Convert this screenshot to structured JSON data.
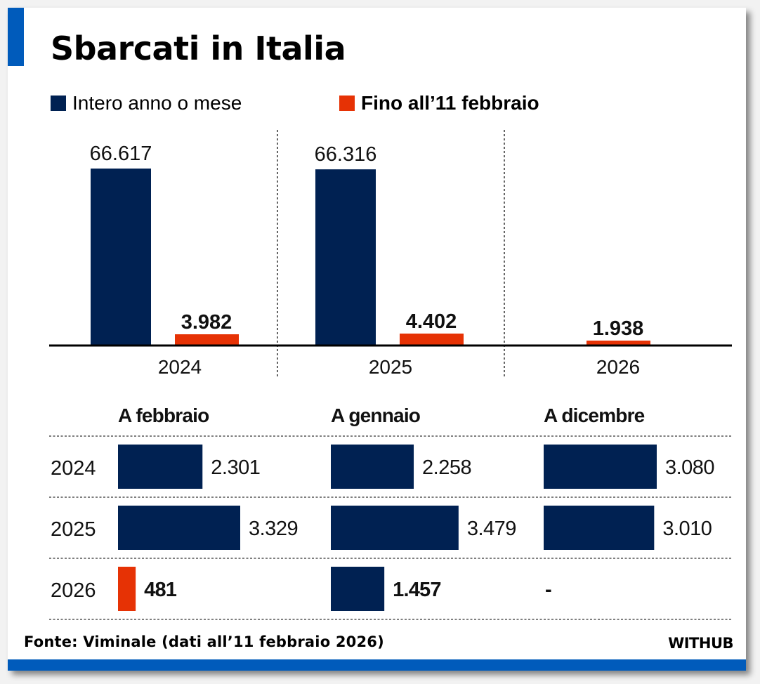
{
  "title": "Sbarcati in Italia",
  "legend": [
    {
      "label": "Intero anno o mese",
      "color": "#002152"
    },
    {
      "label": "Fino all’11 febbraio",
      "color": "#e63205"
    }
  ],
  "source": "Fonte: Viminale (dati all’11 febbraio 2026)",
  "brand": "WITHUB",
  "colors": {
    "navy": "#002152",
    "red": "#e63205",
    "accent": "#005bbb"
  },
  "chart_data": [
    {
      "type": "bar",
      "title": "Sbarcati in Italia",
      "categories": [
        "2024",
        "2025",
        "2026"
      ],
      "series": [
        {
          "name": "Intero anno o mese",
          "values": [
            66617,
            66316,
            null
          ],
          "labels": [
            "66.617",
            "66.316",
            ""
          ]
        },
        {
          "name": "Fino all’11 febbraio",
          "values": [
            3982,
            4402,
            1938
          ],
          "labels": [
            "3.982",
            "4.402",
            "1.938"
          ]
        }
      ],
      "ylim": [
        0,
        70000
      ],
      "grid": false
    },
    {
      "type": "bar",
      "orientation": "horizontal",
      "panels": [
        {
          "title": "A febbraio",
          "rows": [
            {
              "year": "2024",
              "value": 2301,
              "label": "2.301",
              "highlight": false
            },
            {
              "year": "2025",
              "value": 3329,
              "label": "3.329",
              "highlight": false
            },
            {
              "year": "2026",
              "value": 481,
              "label": "481",
              "highlight": true
            }
          ]
        },
        {
          "title": "A gennaio",
          "rows": [
            {
              "year": "2024",
              "value": 2258,
              "label": "2.258",
              "highlight": false
            },
            {
              "year": "2025",
              "value": 3479,
              "label": "3.479",
              "highlight": false
            },
            {
              "year": "2026",
              "value": 1457,
              "label": "1.457",
              "highlight": false
            }
          ]
        },
        {
          "title": "A dicembre",
          "rows": [
            {
              "year": "2024",
              "value": 3080,
              "label": "3.080",
              "highlight": false
            },
            {
              "year": "2025",
              "value": 3010,
              "label": "3.010",
              "highlight": false
            },
            {
              "year": "2026",
              "value": null,
              "label": "-",
              "highlight": false
            }
          ]
        }
      ],
      "years": [
        "2024",
        "2025",
        "2026"
      ],
      "xlim": [
        0,
        4000
      ]
    }
  ]
}
